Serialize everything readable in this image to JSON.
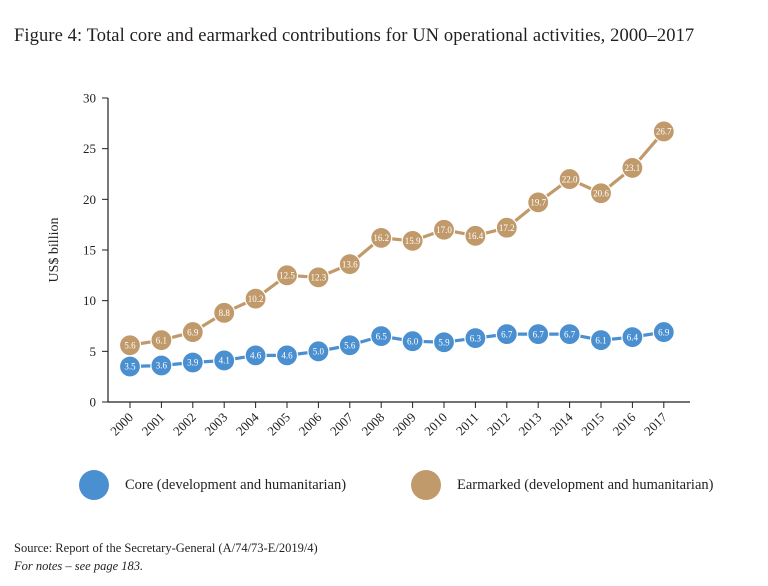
{
  "figure_title": "Figure 4: Total core and earmarked contributions for UN operational activities, 2000–2017",
  "source_text": "Source: Report of the Secretary-General (A/74/73-E/2019/4)",
  "notes_text": "For notes – see page 183.",
  "colors": {
    "core": "#4a8fd0",
    "earmarked": "#c19a6b",
    "axis": "#231f20",
    "point_label": "#ffffff"
  },
  "chart_data": {
    "type": "line",
    "title": "Figure 4: Total core and earmarked contributions for UN operational activities, 2000–2017",
    "xlabel": "",
    "ylabel": "US$ billion",
    "ylim": [
      0,
      30
    ],
    "yticks": [
      0,
      5,
      10,
      15,
      20,
      25,
      30
    ],
    "grid": false,
    "legend_position": "bottom",
    "categories": [
      "2000",
      "2001",
      "2002",
      "2003",
      "2004",
      "2005",
      "2006",
      "2007",
      "2008",
      "2009",
      "2010",
      "2011",
      "2012",
      "2013",
      "2014",
      "2015",
      "2016",
      "2017"
    ],
    "series": [
      {
        "name": "Core (development and humanitarian)",
        "color": "#4a8fd0",
        "values": [
          3.5,
          3.6,
          3.9,
          4.1,
          4.6,
          4.6,
          5.0,
          5.6,
          6.5,
          6.0,
          5.9,
          6.3,
          6.7,
          6.7,
          6.7,
          6.1,
          6.4,
          6.9
        ],
        "labels": [
          "3.5",
          "3.6",
          "3.9",
          "4.1",
          "4.6",
          "4.6",
          "5.0",
          "5.6",
          "6.5",
          "6.0",
          "5.9",
          "6.3",
          "6.7",
          "6.7",
          "6.7",
          "6.1",
          "6.4",
          "6.9"
        ]
      },
      {
        "name": "Earmarked (development and humanitarian)",
        "color": "#c19a6b",
        "values": [
          5.6,
          6.1,
          6.9,
          8.8,
          10.2,
          12.5,
          12.3,
          13.6,
          16.2,
          15.9,
          17.0,
          16.4,
          17.2,
          19.7,
          22.0,
          20.6,
          23.1,
          26.7
        ],
        "labels": [
          "5.6",
          "6.1",
          "6.9",
          "8.8",
          "10.2",
          "12.5",
          "12.3",
          "13.6",
          "16.2",
          "15.9",
          "17.0",
          "16.4",
          "17.2",
          "19.7",
          "22.0",
          "20.6",
          "23.1",
          "26.7"
        ]
      }
    ]
  }
}
